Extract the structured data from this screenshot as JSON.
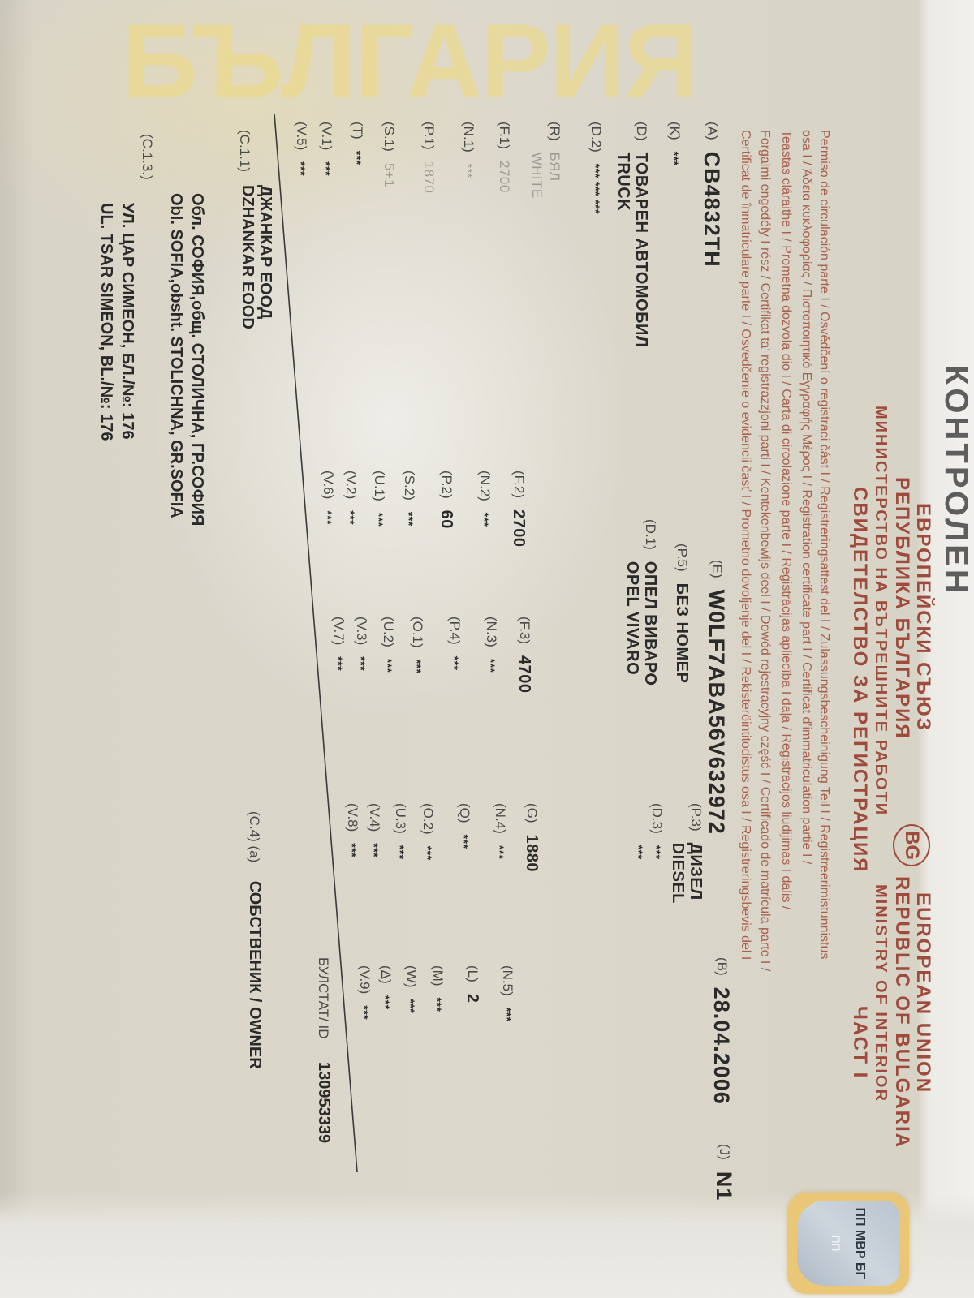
{
  "watermark": "БЪЛГАРИЯ",
  "stamp_top": "КОНТРОЛЕН",
  "header": {
    "bg_lines": [
      "ЕВРОПЕЙСКИ СЪЮЗ",
      "РЕПУБЛИКА БЪЛГАРИЯ",
      "МИНИСТЕРСТВО НА ВЪТРЕШНИТЕ РАБОТИ",
      "СВИДЕТЕЛСТВО ЗА РЕГИСТРАЦИЯ"
    ],
    "country_badge": "BG",
    "en_lines": [
      "EUROPEAN UNION",
      "REPUBLIC OF BULGARIA",
      "MINISTRY OF INTERIOR",
      "ЧАСТ I"
    ]
  },
  "multilingual_lines": [
    "Permiso de circulación parte I / Osvědčení o registraci část I / Registreringsattest del I / Zulassungsbescheinigung Teil I / Registreerimistunnistus",
    "osa I / Άδεια κυκλοφορίας / Πιστοποιητικό Εγγραφής Μέρος I / Registration certificate part I / Certificat d'immatriculation partie I /",
    "Teastas cláraithe I / Prometna dozvola dio I / Carta di circolazione parte I / Reģistrācijas apliecība I daļa / Registracijos liudijimas I dalis /",
    "Forgalmi engedély I rész / Certifikat ta' registrazzjoni parti I / Kentekenbewijs deel I / Dowód rejestracyjny część I / Certificado de matrícula parte I /",
    "Certificat de înmatriculare parte I / Osvedčenie o evidencii časť I / Prometno dovoljenje del I / Rekisteröintitodistus osa I / Registreringsbevis del I"
  ],
  "hologram": {
    "line1": "ПП МВР БГ",
    "line2": "ПП"
  },
  "fields": [
    [
      {
        "label": "(A)",
        "value": [
          "CB4832TH"
        ],
        "big": true
      },
      {
        "label": "(E)",
        "value": [
          "W0LF7ABA56V632972"
        ],
        "big": true
      },
      {
        "label": "(B)",
        "value": [
          "28.04.2006"
        ],
        "big": true
      },
      {
        "label": "(J)",
        "value": [
          "N1"
        ],
        "big": true
      }
    ],
    [
      {
        "label": "(K)",
        "value": [
          "***"
        ]
      },
      {
        "label": "(P.5)",
        "value": [
          "БЕЗ НОМЕР"
        ]
      },
      {
        "label": "(P.3)",
        "value": [
          "ДИЗЕЛ",
          "DIESEL"
        ]
      }
    ],
    [
      {
        "label": "(D)",
        "value": [
          "ТОВАРЕН АВТОМОБИЛ",
          "TRUCK"
        ]
      },
      {
        "label": "(D.1)",
        "value": [
          "ОПЕЛ ВИВАРО",
          "OPEL VIVARO"
        ]
      },
      {
        "label": "(D.3)",
        "value": [
          "***",
          "***"
        ]
      }
    ],
    [
      {
        "label": "(D.2)",
        "value": [
          "*** *** ***"
        ]
      }
    ],
    [
      {
        "label": "(R)",
        "value": [
          "БЯЛ",
          "WHITE"
        ],
        "faded": true
      }
    ],
    [
      {
        "label": "(F.1)",
        "value": [
          "2700"
        ],
        "faded": true
      },
      {
        "label": "(F.2)",
        "value": [
          "2700"
        ]
      },
      {
        "label": "(F.3)",
        "value": [
          "4700"
        ]
      },
      {
        "label": "(G)",
        "value": [
          "1880"
        ]
      }
    ],
    [
      {
        "label": "(N.1)",
        "value": [
          "***"
        ],
        "faded": true
      },
      {
        "label": "(N.2)",
        "value": [
          "***"
        ]
      },
      {
        "label": "(N.3)",
        "value": [
          "***"
        ]
      },
      {
        "label": "(N.4)",
        "value": [
          "***"
        ]
      },
      {
        "label": "(N.5)",
        "value": [
          "***"
        ]
      }
    ],
    [
      {
        "label": "(P.1)",
        "value": [
          "1870"
        ],
        "faded": true
      },
      {
        "label": "(P.2)",
        "value": [
          "60"
        ]
      },
      {
        "label": "(P.4)",
        "value": [
          "***"
        ]
      },
      {
        "label": "(Q)",
        "value": [
          "***"
        ]
      },
      {
        "label": "(L)",
        "value": [
          "2"
        ]
      }
    ],
    [
      {
        "label": "(S.1)",
        "value": [
          "5+1"
        ],
        "faded": true
      },
      {
        "label": "(S.2)",
        "value": [
          "***"
        ]
      },
      {
        "label": "(O.1)",
        "value": [
          "***"
        ]
      },
      {
        "label": "(O.2)",
        "value": [
          "***"
        ]
      },
      {
        "label": "(M)",
        "value": [
          "***"
        ]
      }
    ],
    [
      {
        "label": "(T)",
        "value": [
          "***"
        ]
      },
      {
        "label": "(U.1)",
        "value": [
          "***"
        ]
      },
      {
        "label": "(U.2)",
        "value": [
          "***"
        ]
      },
      {
        "label": "(U.3)",
        "value": [
          "***"
        ]
      },
      {
        "label": "(W)",
        "value": [
          "***"
        ]
      }
    ],
    [
      {
        "label": "(V.1)",
        "value": [
          "***"
        ]
      },
      {
        "label": "(V.2)",
        "value": [
          "***"
        ]
      },
      {
        "label": "(V.3)",
        "value": [
          "***"
        ]
      },
      {
        "label": "(V.4)",
        "value": [
          "***"
        ]
      },
      {
        "label": "(Δ)",
        "value": [
          "***"
        ]
      }
    ],
    [
      {
        "label": "(V.5)",
        "value": [
          "***"
        ]
      },
      {
        "label": "(V.6)",
        "value": [
          "***"
        ]
      },
      {
        "label": "(V.7)",
        "value": [
          "***"
        ]
      },
      {
        "label": "(V.8)",
        "value": [
          "***"
        ]
      },
      {
        "label": "(V.9)",
        "value": [
          "***"
        ]
      }
    ]
  ],
  "bulstat": {
    "label": "БУЛСТАТ/ ID",
    "value": "130953339"
  },
  "holder": {
    "label": "(C.1.1)",
    "name_bg": "ДЖАНКАР ЕООД",
    "name_en": "DZHANKAR EOOD",
    "role_label": "(C.4) (a)",
    "role": "СОБСТВЕНИК / OWNER",
    "address_label": "(C.1.3.)",
    "address_lines": [
      "Обл. СОФИЯ,общ. СТОЛИЧНА, ГР.СОФИЯ",
      "Obl. SOFIA,obsht. STOLICHNA, GR.SOFIA",
      "УЛ. ЦАР СИМЕОН, БЛ./№: 176",
      "UL. TSAR SIMEON, BL./№: 176"
    ]
  }
}
